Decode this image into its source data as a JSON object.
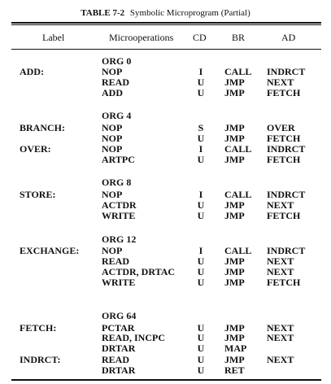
{
  "caption": {
    "number": "TABLE 7-2",
    "title": "Symbolic Microprogram (Partial)"
  },
  "headers": [
    "Label",
    "Microoperations",
    "CD",
    "BR",
    "AD"
  ],
  "rows": [
    {
      "label": "",
      "micro": "ORG 0",
      "cd": "",
      "br": "",
      "ad": ""
    },
    {
      "label": "ADD:",
      "micro": "NOP",
      "cd": "I",
      "br": "CALL",
      "ad": "INDRCT"
    },
    {
      "label": "",
      "micro": "READ",
      "cd": "U",
      "br": "JMP",
      "ad": "NEXT"
    },
    {
      "label": "",
      "micro": "ADD",
      "cd": "U",
      "br": "JMP",
      "ad": "FETCH"
    },
    {
      "label": "",
      "micro": "ORG 4",
      "cd": "",
      "br": "",
      "ad": ""
    },
    {
      "label": "BRANCH:",
      "micro": "NOP",
      "cd": "S",
      "br": "JMP",
      "ad": "OVER"
    },
    {
      "label": "",
      "micro": "NOP",
      "cd": "U",
      "br": "JMP",
      "ad": "FETCH"
    },
    {
      "label": "OVER:",
      "micro": "NOP",
      "cd": "I",
      "br": "CALL",
      "ad": "INDRCT"
    },
    {
      "label": "",
      "micro": "ARTPC",
      "cd": "U",
      "br": "JMP",
      "ad": "FETCH"
    },
    {
      "label": "",
      "micro": "ORG 8",
      "cd": "",
      "br": "",
      "ad": ""
    },
    {
      "label": "STORE:",
      "micro": "NOP",
      "cd": "I",
      "br": "CALL",
      "ad": "INDRCT"
    },
    {
      "label": "",
      "micro": "ACTDR",
      "cd": "U",
      "br": "JMP",
      "ad": "NEXT"
    },
    {
      "label": "",
      "micro": "WRITE",
      "cd": "U",
      "br": "JMP",
      "ad": "FETCH"
    },
    {
      "label": "",
      "micro": "ORG 12",
      "cd": "",
      "br": "",
      "ad": ""
    },
    {
      "label": "EXCHANGE:",
      "micro": "NOP",
      "cd": "I",
      "br": "CALL",
      "ad": "INDRCT"
    },
    {
      "label": "",
      "micro": "READ",
      "cd": "U",
      "br": "JMP",
      "ad": "NEXT"
    },
    {
      "label": "",
      "micro": "ACTDR, DRTAC",
      "cd": "U",
      "br": "JMP",
      "ad": "NEXT"
    },
    {
      "label": "",
      "micro": "WRITE",
      "cd": "U",
      "br": "JMP",
      "ad": "FETCH"
    },
    {
      "label": "",
      "micro": "ORG 64",
      "cd": "",
      "br": "",
      "ad": ""
    },
    {
      "label": "FETCH:",
      "micro": "PCTAR",
      "cd": "U",
      "br": "JMP",
      "ad": "NEXT"
    },
    {
      "label": "",
      "micro": "READ, INCPC",
      "cd": "U",
      "br": "JMP",
      "ad": "NEXT"
    },
    {
      "label": "",
      "micro": "DRTAR",
      "cd": "U",
      "br": "MAP",
      "ad": ""
    },
    {
      "label": "INDRCT:",
      "micro": "READ",
      "cd": "U",
      "br": "JMP",
      "ad": "NEXT"
    },
    {
      "label": "",
      "micro": "DRTAR",
      "cd": "U",
      "br": "RET",
      "ad": ""
    }
  ]
}
